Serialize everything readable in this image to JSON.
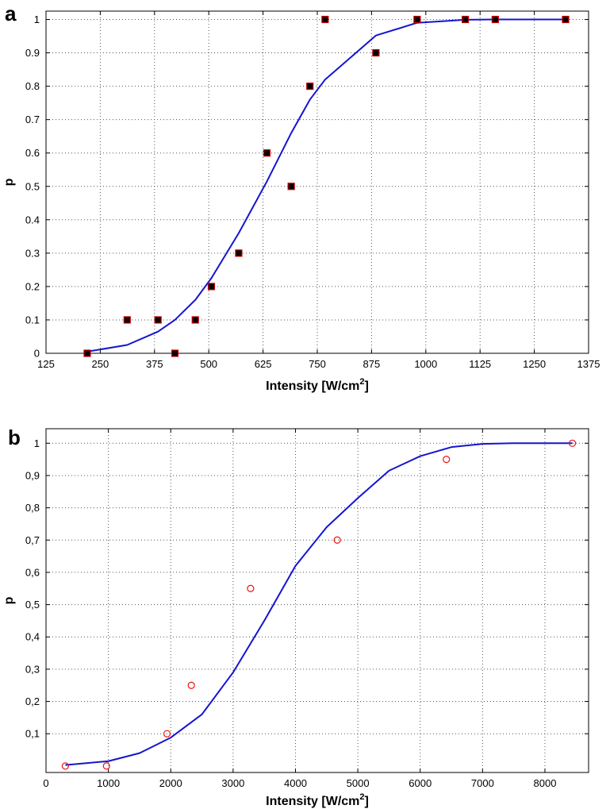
{
  "panels": {
    "a": {
      "letter": "a"
    },
    "b": {
      "letter": "b"
    }
  },
  "colors": {
    "curve": "#1414d2",
    "marker_fill_a": "#000000",
    "marker_edge_a": "#cc0000",
    "marker_edge_b": "#ee1111",
    "grid": "#555555"
  },
  "chart_data": [
    {
      "id": "a",
      "type": "scatter",
      "title": "",
      "xlabel": "Intensity [W/cm",
      "xlabel_sup": "2",
      "xlabel_suffix": "]",
      "ylabel": "p",
      "xlim": [
        125,
        1375
      ],
      "ylim": [
        0,
        1.025
      ],
      "xticks": [
        125,
        250,
        375,
        500,
        625,
        750,
        875,
        1000,
        1125,
        1250,
        1375
      ],
      "xtick_labels": [
        "125",
        "250",
        "375",
        "500",
        "625",
        "750",
        "875",
        "1000",
        "1125",
        "1250",
        "1375"
      ],
      "yticks": [
        0,
        0.1,
        0.2,
        0.3,
        0.4,
        0.5,
        0.6,
        0.7,
        0.8,
        0.9,
        1
      ],
      "ytick_labels": [
        "0",
        "0.1",
        "0.2",
        "0.3",
        "0.4",
        "0.5",
        "0.6",
        "0.7",
        "0.8",
        "0.9",
        "1"
      ],
      "grid": true,
      "marker": "square",
      "points": [
        {
          "x": 220,
          "y": 0
        },
        {
          "x": 312,
          "y": 0.1
        },
        {
          "x": 383,
          "y": 0.1
        },
        {
          "x": 422,
          "y": 0
        },
        {
          "x": 469,
          "y": 0.1
        },
        {
          "x": 506,
          "y": 0.2
        },
        {
          "x": 569,
          "y": 0.3
        },
        {
          "x": 634,
          "y": 0.6
        },
        {
          "x": 690,
          "y": 0.5
        },
        {
          "x": 733,
          "y": 0.8
        },
        {
          "x": 768,
          "y": 1
        },
        {
          "x": 885,
          "y": 0.9
        },
        {
          "x": 980,
          "y": 1
        },
        {
          "x": 1091,
          "y": 1
        },
        {
          "x": 1160,
          "y": 1
        },
        {
          "x": 1322,
          "y": 1
        }
      ],
      "fit_curve": [
        {
          "x": 220,
          "y": 0.005
        },
        {
          "x": 312,
          "y": 0.025
        },
        {
          "x": 383,
          "y": 0.065
        },
        {
          "x": 422,
          "y": 0.1
        },
        {
          "x": 469,
          "y": 0.16
        },
        {
          "x": 506,
          "y": 0.225
        },
        {
          "x": 569,
          "y": 0.36
        },
        {
          "x": 634,
          "y": 0.515
        },
        {
          "x": 690,
          "y": 0.66
        },
        {
          "x": 733,
          "y": 0.76
        },
        {
          "x": 768,
          "y": 0.82
        },
        {
          "x": 885,
          "y": 0.952
        },
        {
          "x": 980,
          "y": 0.99
        },
        {
          "x": 1091,
          "y": 0.999
        },
        {
          "x": 1160,
          "y": 1
        },
        {
          "x": 1322,
          "y": 1
        }
      ]
    },
    {
      "id": "b",
      "type": "scatter",
      "title": "",
      "xlabel": "Intensity [W/cm",
      "xlabel_sup": "2",
      "xlabel_suffix": "]",
      "ylabel": "p",
      "xlim": [
        0,
        8700
      ],
      "ylim": [
        -0.02,
        1.045
      ],
      "xticks": [
        0,
        1000,
        2000,
        3000,
        4000,
        5000,
        6000,
        7000,
        8000
      ],
      "xtick_labels": [
        "0",
        "1000",
        "2000",
        "3000",
        "4000",
        "5000",
        "6000",
        "7000",
        "8000"
      ],
      "yticks": [
        0.1,
        0.2,
        0.3,
        0.4,
        0.5,
        0.6,
        0.7,
        0.8,
        0.9,
        1
      ],
      "ytick_labels": [
        "0,1",
        "0,2",
        "0,3",
        "0,4",
        "0,5",
        "0,6",
        "0,7",
        "0,8",
        "0,9",
        "1"
      ],
      "grid": true,
      "marker": "circle",
      "points": [
        {
          "x": 310,
          "y": 0
        },
        {
          "x": 970,
          "y": 0
        },
        {
          "x": 1940,
          "y": 0.1
        },
        {
          "x": 2330,
          "y": 0.25
        },
        {
          "x": 3280,
          "y": 0.55
        },
        {
          "x": 4670,
          "y": 0.7
        },
        {
          "x": 6420,
          "y": 0.95
        },
        {
          "x": 8440,
          "y": 1
        }
      ],
      "fit_curve": [
        {
          "x": 310,
          "y": 0.003
        },
        {
          "x": 1000,
          "y": 0.015
        },
        {
          "x": 1500,
          "y": 0.04
        },
        {
          "x": 2000,
          "y": 0.088
        },
        {
          "x": 2500,
          "y": 0.16
        },
        {
          "x": 3000,
          "y": 0.29
        },
        {
          "x": 3500,
          "y": 0.45
        },
        {
          "x": 4000,
          "y": 0.62
        },
        {
          "x": 4500,
          "y": 0.74
        },
        {
          "x": 5000,
          "y": 0.83
        },
        {
          "x": 5500,
          "y": 0.915
        },
        {
          "x": 6000,
          "y": 0.96
        },
        {
          "x": 6500,
          "y": 0.988
        },
        {
          "x": 7000,
          "y": 0.998
        },
        {
          "x": 7500,
          "y": 1
        },
        {
          "x": 8440,
          "y": 1
        }
      ]
    }
  ]
}
